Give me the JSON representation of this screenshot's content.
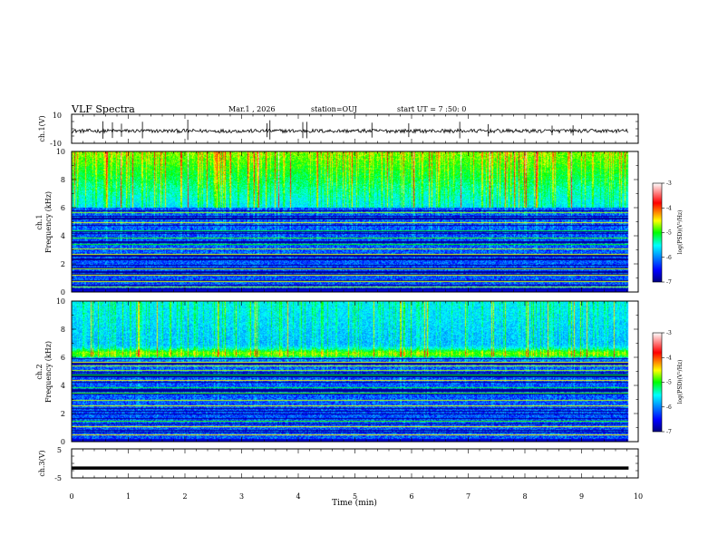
{
  "header": {
    "title": "VLF Spectra",
    "date": "Mar.1 , 2026",
    "station": "station=OUJ",
    "start": "start UT = 7 :50: 0"
  },
  "colorbar": {
    "label": "log(PSD)(V²/Hz)",
    "ticks": [
      "-3",
      "-4",
      "-5",
      "-6",
      "-7"
    ],
    "range": [
      -7,
      -3
    ]
  },
  "chart_data": [
    {
      "type": "line",
      "name": "ch1-waveform",
      "ylabel": "ch.1(V)",
      "ylim": [
        -10,
        10
      ],
      "y_tick_labels": [
        "10",
        "-10"
      ],
      "baseline": -1.5,
      "x_range_min": [
        0,
        9.83
      ],
      "spikes_min": [
        0.55,
        0.72,
        0.88,
        1.25,
        2.05,
        3.45,
        3.5,
        4.08,
        4.15,
        5.3,
        5.95,
        6.85,
        7.35,
        8.48,
        8.85
      ]
    },
    {
      "type": "heatmap",
      "name": "ch1-spectrogram",
      "ylabel": "ch.1 Frequency (kHz)",
      "ylim": [
        0,
        10
      ],
      "y_tick_labels": [
        "0",
        "2",
        "4",
        "6",
        "8",
        "10"
      ],
      "x_range_min": [
        0,
        9.83
      ],
      "value_range_log_psd": [
        -7,
        -3
      ],
      "narrowband_lines_khz": [
        0.4,
        0.8,
        1.2,
        1.7,
        2.3,
        2.7,
        3.1,
        3.4,
        3.9,
        4.4,
        4.8,
        5.0,
        5.3,
        5.7
      ]
    },
    {
      "type": "heatmap",
      "name": "ch2-spectrogram",
      "ylabel": "ch.2 Frequency (kHz)",
      "ylim": [
        0,
        10
      ],
      "y_tick_labels": [
        "0",
        "2",
        "4",
        "6",
        "8",
        "10"
      ],
      "x_range_min": [
        0,
        9.83
      ],
      "value_range_log_psd": [
        -7,
        -3
      ],
      "band_khz": 6.3,
      "narrowband_lines_khz": [
        0.5,
        1.1,
        1.5,
        2.2,
        2.6,
        3.0,
        3.5,
        3.9,
        4.4,
        4.8,
        5.1,
        5.4,
        5.7
      ]
    },
    {
      "type": "line",
      "name": "ch3-waveform",
      "ylabel": "ch.3(V)",
      "ylim": [
        -5,
        5
      ],
      "y_tick_labels": [
        "5",
        "-5"
      ],
      "baseline": -1.6,
      "x_range_min": [
        0,
        9.83
      ]
    }
  ],
  "xaxis": {
    "label": "Time (min)",
    "range": [
      0,
      10
    ],
    "tick_labels": [
      "0",
      "1",
      "2",
      "3",
      "4",
      "5",
      "6",
      "7",
      "8",
      "9",
      "10"
    ]
  }
}
